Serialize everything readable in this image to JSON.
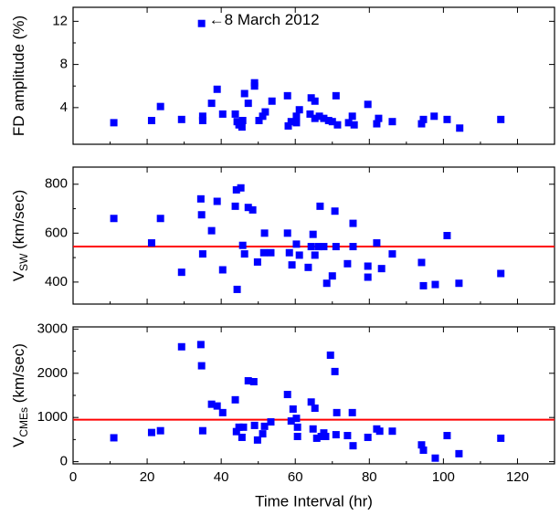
{
  "chart_data": [
    {
      "type": "scatter",
      "ylabel": "FD amplitude (%)",
      "color": "#0000ff",
      "annotation": "←8 March 2012",
      "annotation_x": 34.7,
      "annotation_y": 11.8,
      "xlim": [
        0,
        130
      ],
      "xticks": [
        0,
        20,
        40,
        60,
        80,
        100,
        120
      ],
      "ylim": [
        0.6,
        13.3
      ],
      "yticks": [
        4,
        8,
        12
      ],
      "x": [
        11,
        21.2,
        23.6,
        29.3,
        34.7,
        35,
        35,
        37.4,
        38.9,
        40.4,
        43.8,
        44.3,
        44.8,
        45.6,
        45.8,
        46.3,
        47.3,
        49,
        49,
        50.2,
        51.2,
        51.9,
        53.7,
        57.9,
        58.1,
        58.9,
        60.3,
        61.1,
        60.3,
        64,
        64.3,
        65.3,
        65.3,
        66.5,
        67.7,
        69,
        70,
        71,
        71.4,
        74.4,
        75.4,
        75.9,
        79.6,
        82,
        82.5,
        86.2,
        94.1,
        94.6,
        97.5,
        101,
        104.4,
        115.5
      ],
      "values": [
        2.6,
        2.8,
        4.1,
        2.9,
        11.8,
        3.2,
        2.8,
        4.4,
        5.7,
        3.4,
        3.4,
        2.7,
        2.4,
        2.2,
        2.8,
        5.3,
        4.4,
        6.3,
        6.0,
        2.8,
        3.2,
        3.6,
        4.6,
        5.1,
        2.3,
        2.7,
        3.2,
        3.8,
        2.6,
        3.4,
        4.9,
        4.6,
        3.0,
        3.2,
        3.0,
        2.8,
        2.7,
        5.1,
        2.4,
        2.6,
        3.2,
        2.4,
        4.3,
        2.5,
        3.0,
        2.7,
        2.5,
        2.9,
        3.2,
        2.9,
        2.1,
        2.9
      ]
    },
    {
      "type": "scatter",
      "ylabel": "V",
      "ylabel_sub": "SW",
      "ylabel_unit": " (km/sec)",
      "color": "#0000ff",
      "hline": 545,
      "hline_color": "#ff0000",
      "xlim": [
        0,
        130
      ],
      "xticks": [
        0,
        20,
        40,
        60,
        80,
        100,
        120
      ],
      "ylim": [
        310,
        870
      ],
      "yticks": [
        400,
        600,
        800
      ],
      "x": [
        11,
        21.2,
        23.6,
        29.3,
        34.5,
        34.7,
        35,
        37.4,
        38.9,
        40.4,
        43.8,
        44.1,
        44.3,
        45.3,
        45.8,
        46.3,
        47.3,
        48.5,
        49.8,
        51.5,
        51.7,
        53.4,
        57.9,
        58.4,
        59.1,
        60.3,
        61.1,
        63.5,
        64.3,
        64.8,
        65.3,
        66.3,
        66.7,
        67.7,
        68.5,
        70,
        70.7,
        71,
        74.1,
        75.6,
        75.6,
        79.6,
        79.6,
        82,
        83.3,
        86.2,
        94.1,
        94.6,
        97.8,
        101,
        104.2,
        115.5
      ],
      "values": [
        660,
        560,
        660,
        440,
        740,
        675,
        515,
        610,
        730,
        450,
        710,
        777,
        370,
        785,
        550,
        515,
        705,
        695,
        482,
        520,
        600,
        520,
        600,
        520,
        470,
        555,
        510,
        460,
        545,
        595,
        510,
        545,
        710,
        545,
        395,
        425,
        690,
        545,
        475,
        640,
        545,
        465,
        420,
        560,
        455,
        515,
        480,
        385,
        390,
        590,
        395,
        435
      ]
    },
    {
      "type": "scatter",
      "ylabel": "V",
      "ylabel_sub": "CMEs",
      "ylabel_unit": " (km/sec)",
      "color": "#0000ff",
      "hline": 950,
      "hline_color": "#ff0000",
      "xlabel": "Time Interval (hr)",
      "xlim": [
        0,
        130
      ],
      "xticks": [
        0,
        20,
        40,
        60,
        80,
        100,
        120
      ],
      "ylim": [
        -50,
        3050
      ],
      "yticks": [
        0,
        1000,
        2000,
        3000
      ],
      "x": [
        11,
        21.2,
        23.6,
        29.3,
        34.5,
        34.7,
        35,
        37.4,
        38.9,
        40.4,
        43.8,
        44.1,
        44.8,
        45.6,
        46,
        47.3,
        48.8,
        49,
        49.8,
        51.2,
        51.7,
        53.4,
        57.9,
        58.9,
        59.4,
        60.3,
        60.6,
        60.6,
        64.3,
        64.8,
        65.3,
        65.8,
        67,
        67.7,
        68.2,
        69.5,
        70.7,
        71,
        71.2,
        74.1,
        75.4,
        75.6,
        79.6,
        82,
        82.8,
        86.2,
        94.1,
        94.6,
        97.8,
        101,
        104.2,
        115.5
      ],
      "values": [
        540,
        660,
        700,
        2600,
        2650,
        2170,
        700,
        1300,
        1260,
        1110,
        1400,
        680,
        780,
        550,
        780,
        1830,
        1810,
        820,
        490,
        630,
        800,
        900,
        1520,
        920,
        1190,
        980,
        570,
        780,
        1350,
        740,
        1210,
        530,
        570,
        650,
        570,
        2410,
        2040,
        610,
        1110,
        590,
        1110,
        360,
        550,
        740,
        690,
        690,
        380,
        260,
        80,
        590,
        180,
        530
      ]
    }
  ]
}
